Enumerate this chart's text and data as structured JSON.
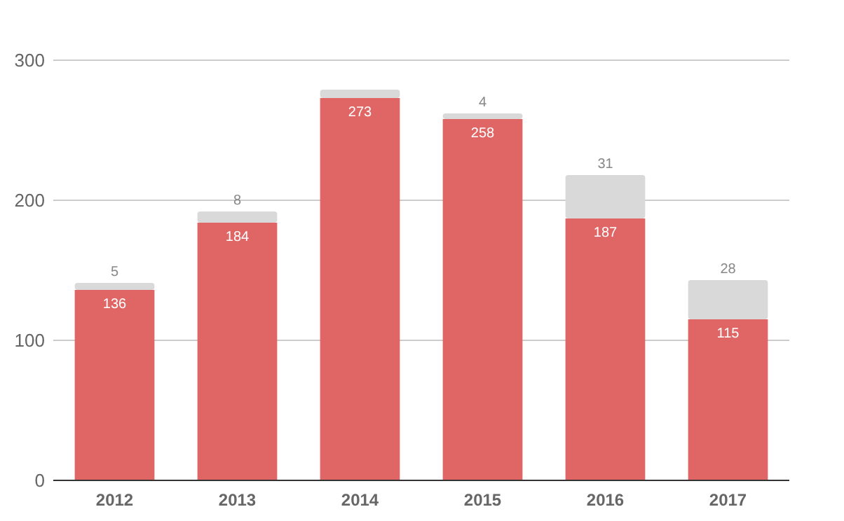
{
  "chart_data": {
    "type": "bar",
    "stacked": true,
    "categories": [
      "2012",
      "2013",
      "2014",
      "2015",
      "2016",
      "2017"
    ],
    "series": [
      {
        "color": "#e06666",
        "values": [
          136,
          184,
          273,
          258,
          187,
          115
        ],
        "value_labels": [
          "136",
          "184",
          "273",
          "258",
          "187",
          "115"
        ]
      },
      {
        "color": "#d9d9d9",
        "values": [
          5,
          8,
          6,
          4,
          31,
          28
        ],
        "value_labels": [
          "5",
          "8",
          null,
          "4",
          "31",
          "28"
        ]
      }
    ],
    "ylim": [
      0,
      300
    ],
    "yticks": [
      0,
      100,
      200,
      300
    ],
    "grid": "y"
  }
}
